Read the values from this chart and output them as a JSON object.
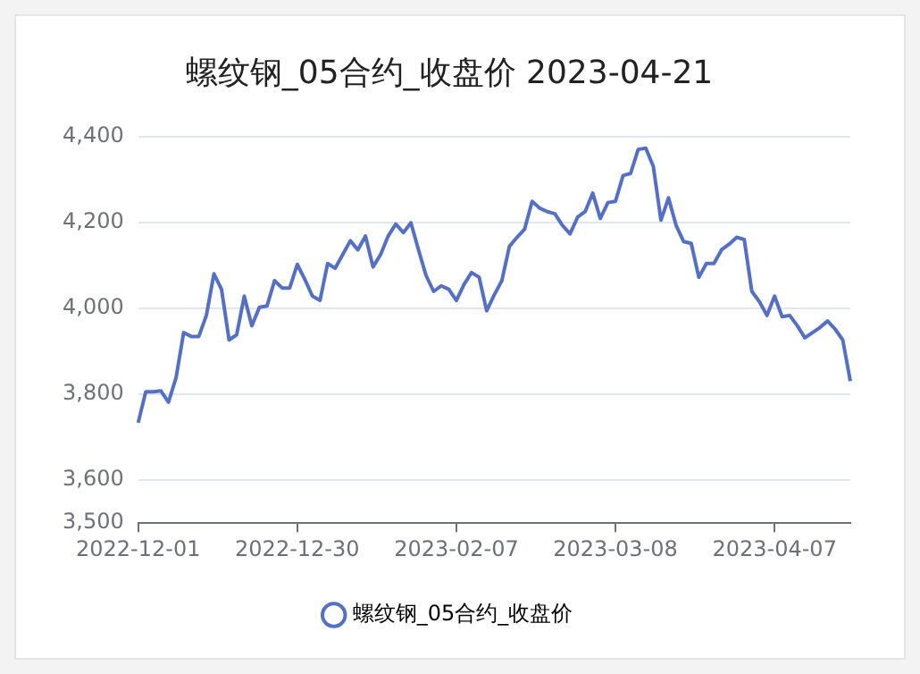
{
  "chart_data": {
    "type": "line",
    "title": "螺纹钢_05合约_收盘价 2023-04-21",
    "categories": [
      "2022-12-01",
      null,
      null,
      null,
      null,
      null,
      null,
      null,
      null,
      null,
      null,
      null,
      null,
      null,
      null,
      null,
      null,
      null,
      null,
      null,
      null,
      "2022-12-30",
      null,
      null,
      null,
      null,
      null,
      null,
      null,
      null,
      null,
      null,
      null,
      null,
      null,
      null,
      null,
      null,
      null,
      null,
      null,
      null,
      "2023-02-07",
      null,
      null,
      null,
      null,
      null,
      null,
      null,
      null,
      null,
      null,
      null,
      null,
      null,
      null,
      null,
      null,
      null,
      null,
      null,
      null,
      "2023-03-08",
      null,
      null,
      null,
      null,
      null,
      null,
      null,
      null,
      null,
      null,
      null,
      null,
      null,
      null,
      null,
      null,
      null,
      null,
      null,
      null,
      "2023-04-07",
      null,
      null,
      null,
      null,
      null,
      null,
      null,
      null,
      null,
      null
    ],
    "series": [
      {
        "name": "螺纹钢_05合约_收盘价",
        "color": "#5470c6",
        "values": [
          3734,
          3806,
          3806,
          3808,
          3782,
          3839,
          3944,
          3935,
          3935,
          3984,
          4081,
          4045,
          3927,
          3939,
          4029,
          3960,
          4003,
          4006,
          4065,
          4048,
          4048,
          4103,
          4068,
          4029,
          4019,
          4105,
          4094,
          4126,
          4158,
          4137,
          4169,
          4097,
          4126,
          4169,
          4197,
          4177,
          4200,
          4137,
          4077,
          4040,
          4053,
          4045,
          4019,
          4056,
          4084,
          4073,
          3995,
          4032,
          4065,
          4145,
          4166,
          4185,
          4250,
          4234,
          4226,
          4221,
          4194,
          4174,
          4213,
          4226,
          4269,
          4210,
          4247,
          4250,
          4310,
          4315,
          4371,
          4374,
          4331,
          4206,
          4258,
          4194,
          4156,
          4152,
          4073,
          4105,
          4105,
          4137,
          4150,
          4166,
          4161,
          4040,
          4016,
          3984,
          4029,
          3981,
          3984,
          3960,
          3932,
          3944,
          3956,
          3971,
          3952,
          3927,
          3831
        ]
      }
    ],
    "ylim": [
      3500,
      4400
    ],
    "yticks": [
      {
        "value": 3500,
        "label": "3,500"
      },
      {
        "value": 3600,
        "label": "3,600"
      },
      {
        "value": 3800,
        "label": "3,800"
      },
      {
        "value": 4000,
        "label": "4,000"
      },
      {
        "value": 4200,
        "label": "4,200"
      },
      {
        "value": 4400,
        "label": "4,400"
      }
    ],
    "grid": "y",
    "legend": "bottom",
    "marker": "none",
    "line_style": "solid"
  }
}
